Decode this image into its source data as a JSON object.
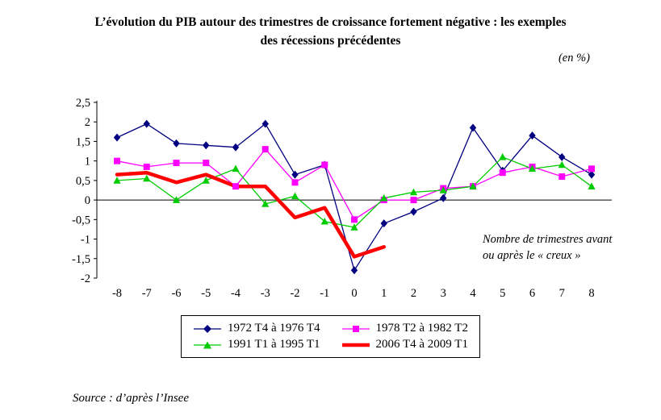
{
  "title_line1": "L’évolution du PIB autour des trimestres de croissance fortement négative : les exemples",
  "title_line2": "des récessions précédentes",
  "unit_label": "(en %)",
  "annotation": "Nombre de trimestres avant\nou après le « creux »",
  "source": "Source : d’après l’Insee",
  "chart_data": {
    "type": "line",
    "x": [
      -8,
      -7,
      -6,
      -5,
      -4,
      -3,
      -2,
      -1,
      0,
      1,
      2,
      3,
      4,
      5,
      6,
      7,
      8
    ],
    "xlabel": "Nombre de trimestres avant ou après le « creux »",
    "ylabel": "",
    "ylim": [
      -2,
      2.5
    ],
    "ytick_step": 0.5,
    "grid": false,
    "legend_position": "bottom",
    "series": [
      {
        "name": "1972 T4 à 1976 T4",
        "color": "#000080",
        "marker": "diamond",
        "line_width": 1.3,
        "values": [
          1.6,
          1.95,
          1.45,
          1.4,
          1.35,
          1.95,
          0.65,
          0.9,
          -1.8,
          -0.6,
          -0.3,
          0.05,
          1.85,
          0.75,
          1.65,
          1.1,
          0.65
        ]
      },
      {
        "name": "1978 T2 à 1982 T2",
        "color": "#FF00FF",
        "marker": "square",
        "line_width": 1.3,
        "values": [
          1.0,
          0.85,
          0.95,
          0.95,
          0.35,
          1.3,
          0.45,
          0.9,
          -0.5,
          0.0,
          0.0,
          0.3,
          0.35,
          0.7,
          0.85,
          0.6,
          0.8
        ]
      },
      {
        "name": "1991 T1 à 1995 T1",
        "color": "#00CC00",
        "marker": "triangle",
        "line_width": 1.3,
        "values": [
          0.5,
          0.55,
          0.0,
          0.5,
          0.8,
          -0.1,
          0.1,
          -0.55,
          -0.7,
          0.05,
          0.2,
          0.25,
          0.35,
          1.1,
          0.8,
          0.9,
          0.35
        ]
      },
      {
        "name": "2006 T4 à 2009 T1",
        "color": "#FF0000",
        "marker": "none",
        "line_width": 4.5,
        "values": [
          0.65,
          0.7,
          0.45,
          0.65,
          0.35,
          0.35,
          -0.45,
          -0.2,
          -1.45,
          -1.2,
          null,
          null,
          null,
          null,
          null,
          null,
          null
        ]
      }
    ]
  }
}
